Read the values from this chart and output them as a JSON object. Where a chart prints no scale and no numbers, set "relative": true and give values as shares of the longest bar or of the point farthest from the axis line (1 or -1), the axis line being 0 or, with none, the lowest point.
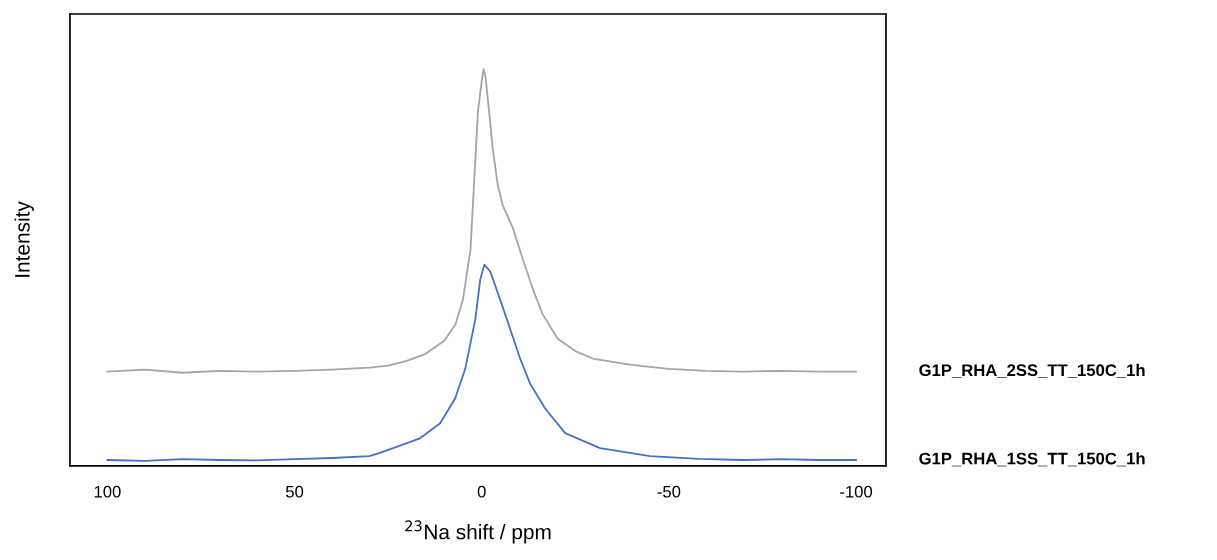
{
  "chart_data": {
    "type": "line",
    "relative": true,
    "xlabel": "$^{23}$Na shift / ppm",
    "ylabel": "Intensity",
    "xlim": [
      110,
      -108
    ],
    "xticks": [
      100,
      50,
      0,
      -50,
      -100
    ],
    "grid": false,
    "legend": false,
    "marker": "none",
    "line_style": "solid",
    "tick_labels": "x",
    "series": [
      {
        "name": "G1P_RHA_2SS_TT_150C_1h",
        "color": "#a5a5a5",
        "x": [
          100,
          90,
          80,
          70,
          60,
          50,
          40,
          30,
          25,
          20,
          15,
          10,
          7,
          5,
          3,
          2,
          1,
          0,
          -0.5,
          -1,
          -2,
          -3,
          -4.3,
          -5.6,
          -8.3,
          -11,
          -13.7,
          -16.3,
          -20.3,
          -25,
          -30,
          -40,
          -50,
          -60,
          -70,
          -80,
          -90,
          -100
        ],
        "values": [
          0.234,
          0.239,
          0.231,
          0.236,
          0.234,
          0.236,
          0.239,
          0.244,
          0.249,
          0.261,
          0.279,
          0.312,
          0.354,
          0.417,
          0.543,
          0.719,
          0.894,
          0.97,
          1,
          0.982,
          0.89,
          0.794,
          0.706,
          0.656,
          0.598,
          0.518,
          0.442,
          0.379,
          0.317,
          0.286,
          0.266,
          0.251,
          0.241,
          0.236,
          0.234,
          0.236,
          0.234,
          0.234
        ]
      },
      {
        "name": "G1P_RHA_1SS_TT_150C_1h",
        "color": "#4472c4",
        "x": [
          100,
          90,
          80,
          70,
          60,
          50,
          40,
          30,
          27.2,
          16.5,
          11.1,
          7.1,
          4.4,
          1.7,
          0.4,
          -0.7,
          -2.3,
          -4.9,
          -7.6,
          -10.3,
          -12.9,
          -16.9,
          -22.3,
          -31.6,
          -45,
          -58,
          -70,
          -80,
          -90,
          -100
        ],
        "values": [
          0.01,
          0.008,
          0.012,
          0.01,
          0.009,
          0.012,
          0.015,
          0.02,
          0.028,
          0.065,
          0.103,
          0.166,
          0.241,
          0.367,
          0.467,
          0.505,
          0.487,
          0.417,
          0.342,
          0.266,
          0.204,
          0.141,
          0.078,
          0.04,
          0.02,
          0.013,
          0.01,
          0.012,
          0.01,
          0.01
        ]
      }
    ]
  }
}
